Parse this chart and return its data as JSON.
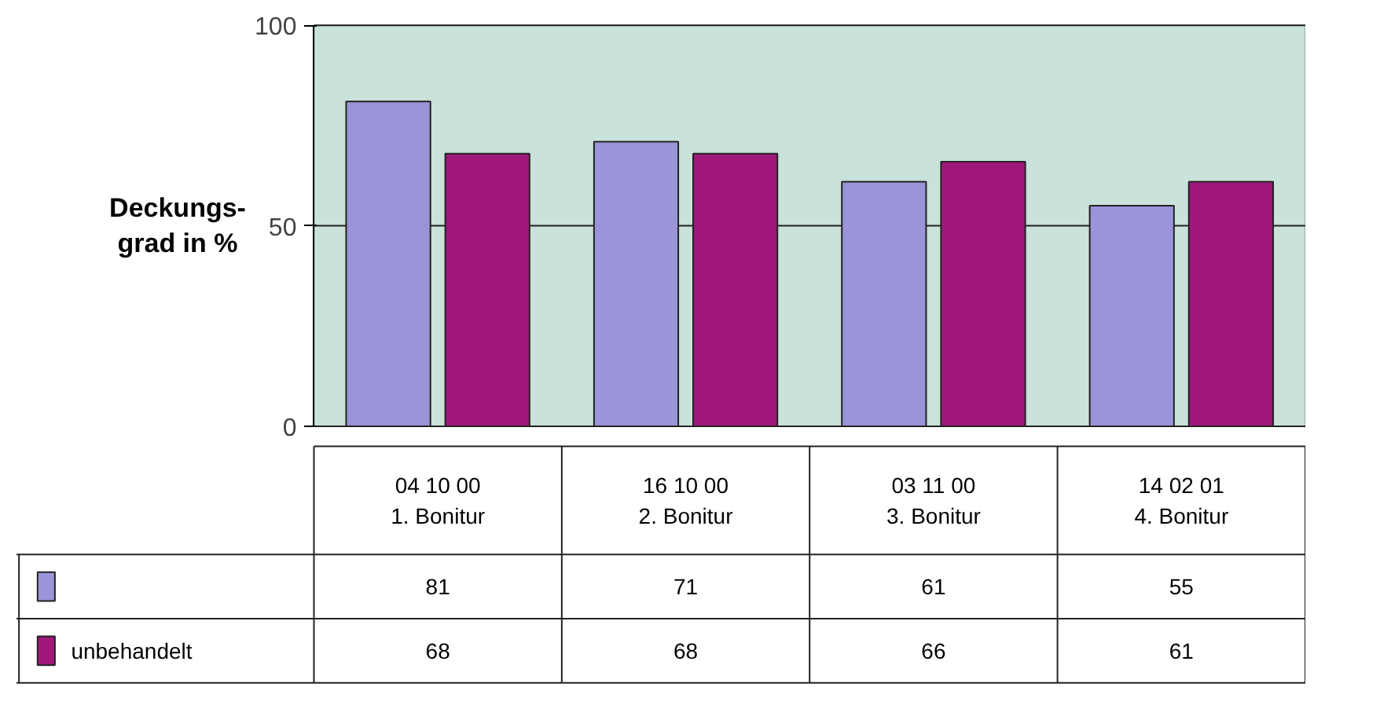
{
  "chart_data": {
    "type": "bar",
    "ylabel": "Deckungs-\ngrad in %",
    "categories": [
      "04 10 00\n1. Bonitur",
      "16 10 00\n2. Bonitur",
      "03 11 00\n3. Bonitur",
      "14 02 01\n4. Bonitur"
    ],
    "series": [
      {
        "color": "#9a94d8",
        "values": [
          81,
          71,
          61,
          55
        ]
      },
      {
        "name": "unbehandelt",
        "color": "#a0177c",
        "values": [
          68,
          68,
          66,
          61
        ]
      }
    ],
    "ylim": [
      0,
      100
    ],
    "yticks": [
      0,
      50,
      100
    ],
    "grid": "y",
    "legend": "bottom",
    "data_labels": true
  }
}
